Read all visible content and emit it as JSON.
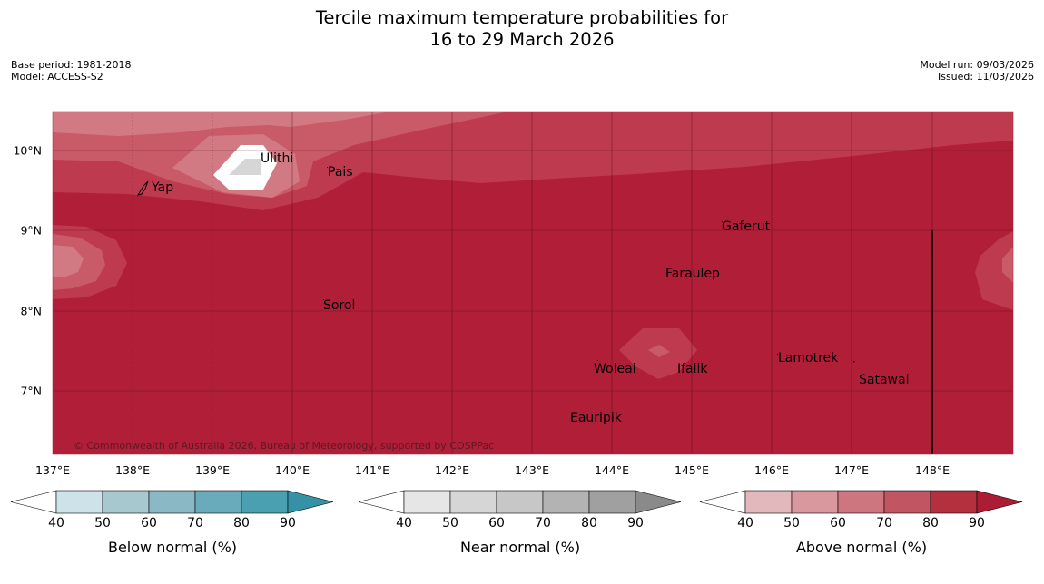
{
  "title_line1": "Tercile maximum temperature probabilities for",
  "title_line2": "16 to 29 March 2026",
  "base_period": "Base period: 1981-2018",
  "model": "Model: ACCESS-S2",
  "model_run": "Model run: 09/03/2026",
  "issued": "Issued: 11/03/2026",
  "copyright": "© Commonwealth of Australia 2026, Bureau of Meteorology, supported by COSPPac",
  "lon_labels": [
    "137°E",
    "138°E",
    "139°E",
    "140°E",
    "141°E",
    "142°E",
    "143°E",
    "144°E",
    "145°E",
    "146°E",
    "147°E",
    "148°E"
  ],
  "lat_labels": [
    "10°N",
    "9°N",
    "8°N",
    "7°N"
  ],
  "places": {
    "ulithi": "Ulithi",
    "pais": "Pais",
    "yap": "Yap",
    "gaferut": "Gaferut",
    "faraulep": "Faraulep",
    "sorol": "Sorol",
    "lamotrek": "Lamotrek",
    "woleai": "Woleai",
    "ifalik": "Ifalik",
    "satawal": "Satawal",
    "eauripik": "Eauripik"
  },
  "colorbars": {
    "below": {
      "label": "Below normal (%)",
      "ticks": [
        "40",
        "50",
        "60",
        "70",
        "80",
        "90"
      ],
      "colors": [
        "#ffffff",
        "#cde3e9",
        "#a8c8cf",
        "#8ab8c4",
        "#6aabbb",
        "#4a9fb0",
        "#3591a6"
      ]
    },
    "near": {
      "label": "Near normal (%)",
      "ticks": [
        "40",
        "50",
        "60",
        "70",
        "80",
        "90"
      ],
      "colors": [
        "#ffffff",
        "#e6e6e6",
        "#d6d6d6",
        "#c7c7c7",
        "#b3b3b3",
        "#a0a0a0",
        "#8a8a8a"
      ]
    },
    "above": {
      "label": "Above normal (%)",
      "ticks": [
        "40",
        "50",
        "60",
        "70",
        "80",
        "90"
      ],
      "colors": [
        "#ffffff",
        "#e3b8bc",
        "#d9979e",
        "#cd767f",
        "#c15562",
        "#b5303f",
        "#ac1c35"
      ]
    }
  },
  "colors": {
    "map_base": "#b11e38",
    "above_80": "#be3a4f",
    "above_70": "#c95a68",
    "above_60": "#d27a84",
    "near_high": "#d6d6d6"
  }
}
